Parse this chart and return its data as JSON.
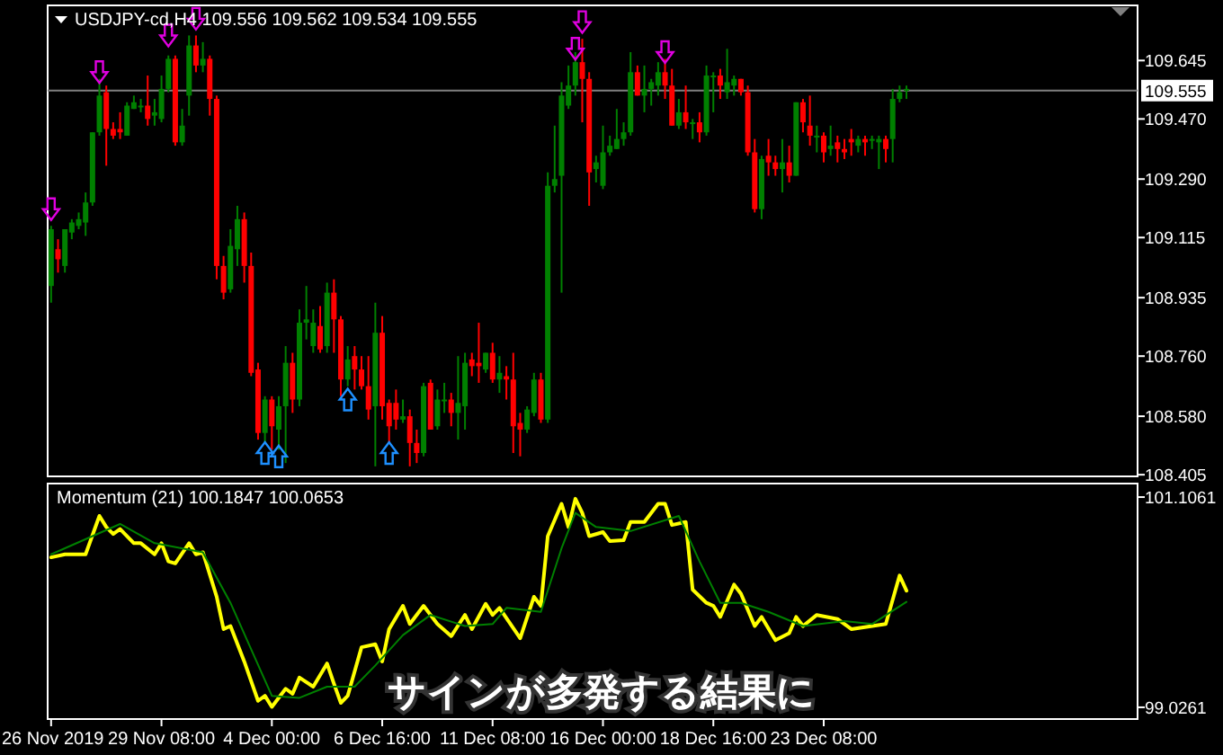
{
  "chart_data": [
    {
      "type": "candlestick",
      "title": "USDJPY-cd,H4 109.556 109.562 109.534 109.555",
      "categories": [
        null,
        null,
        null,
        null,
        null,
        null,
        null,
        null,
        null,
        null,
        null,
        null,
        null,
        null,
        null,
        null,
        null,
        null,
        null,
        null,
        null,
        null,
        null,
        null,
        null,
        null,
        null,
        null,
        null,
        null,
        null,
        null,
        null,
        null,
        null,
        null,
        null,
        null,
        null,
        null,
        null,
        null,
        null,
        null,
        null,
        null,
        null,
        null,
        null,
        null,
        null,
        null,
        null,
        null,
        null,
        null,
        null,
        null,
        null,
        null,
        null,
        null,
        null,
        null,
        null,
        null,
        null,
        null,
        null,
        null,
        null,
        null,
        null,
        null,
        null,
        null,
        null,
        null,
        null,
        null,
        null,
        null,
        null,
        null,
        null,
        null,
        null,
        null,
        null,
        null,
        null,
        null,
        null,
        null,
        null,
        null,
        null,
        null,
        null,
        null,
        null,
        null,
        null,
        null,
        null,
        null,
        null,
        null,
        null,
        null,
        null,
        null,
        null,
        null,
        null,
        null,
        null,
        null,
        null,
        null,
        null,
        null,
        null,
        null,
        null,
        null,
        null,
        null,
        null,
        null,
        null,
        null,
        null,
        null,
        null,
        null,
        null,
        null,
        null,
        null,
        null,
        null,
        null,
        null,
        null,
        null,
        null,
        null,
        null,
        null,
        null,
        null,
        null,
        null,
        null,
        null,
        null,
        null
      ],
      "ohlc": [
        [
          108.97,
          109.15,
          108.92,
          109.14
        ],
        [
          109.08,
          109.11,
          109.01,
          109.05
        ],
        [
          109.03,
          109.14,
          109.01,
          109.14
        ],
        [
          109.13,
          109.17,
          109.11,
          109.16
        ],
        [
          109.15,
          109.19,
          109.14,
          109.17
        ],
        [
          109.16,
          109.25,
          109.12,
          109.22
        ],
        [
          109.22,
          109.43,
          109.21,
          109.43
        ],
        [
          109.43,
          109.59,
          109.42,
          109.54
        ],
        [
          109.55,
          109.57,
          109.33,
          109.44
        ],
        [
          109.44,
          109.46,
          109.41,
          109.42
        ],
        [
          109.44,
          109.49,
          109.41,
          109.43
        ],
        [
          109.42,
          109.52,
          109.42,
          109.51
        ],
        [
          109.5,
          109.54,
          109.5,
          109.52
        ],
        [
          109.51,
          109.53,
          109.49,
          109.51
        ],
        [
          109.51,
          109.6,
          109.45,
          109.47
        ],
        [
          109.48,
          109.53,
          109.45,
          109.49
        ],
        [
          109.47,
          109.6,
          109.46,
          109.56
        ],
        [
          109.56,
          109.66,
          109.55,
          109.65
        ],
        [
          109.65,
          109.66,
          109.39,
          109.4
        ],
        [
          109.4,
          109.5,
          109.39,
          109.45
        ],
        [
          109.54,
          109.72,
          109.48,
          109.69
        ],
        [
          109.69,
          109.72,
          109.61,
          109.63
        ],
        [
          109.63,
          109.7,
          109.61,
          109.65
        ],
        [
          109.65,
          109.66,
          109.48,
          109.53
        ],
        [
          109.53,
          109.54,
          108.99,
          109.03
        ],
        [
          109.03,
          109.06,
          108.93,
          108.95
        ],
        [
          108.96,
          109.14,
          108.95,
          109.09
        ],
        [
          109.08,
          109.21,
          109.03,
          109.17
        ],
        [
          109.17,
          109.19,
          108.98,
          109.03
        ],
        [
          109.03,
          109.07,
          108.7,
          108.71
        ],
        [
          108.72,
          108.74,
          108.51,
          108.53
        ],
        [
          108.53,
          108.64,
          108.5,
          108.63
        ],
        [
          108.63,
          108.64,
          108.48,
          108.55
        ],
        [
          108.54,
          108.64,
          108.48,
          108.61
        ],
        [
          108.61,
          108.79,
          108.44,
          108.74
        ],
        [
          108.74,
          108.77,
          108.59,
          108.63
        ],
        [
          108.63,
          108.9,
          108.61,
          108.86
        ],
        [
          108.86,
          108.97,
          108.81,
          108.87
        ],
        [
          108.79,
          108.9,
          108.77,
          108.86
        ],
        [
          108.85,
          108.91,
          108.77,
          108.78
        ],
        [
          108.79,
          108.98,
          108.77,
          108.95
        ],
        [
          108.95,
          108.99,
          108.77,
          108.87
        ],
        [
          108.87,
          108.88,
          108.64,
          108.69
        ],
        [
          108.69,
          108.79,
          108.67,
          108.75
        ],
        [
          108.76,
          108.79,
          108.66,
          108.72
        ],
        [
          108.72,
          108.76,
          108.66,
          108.67
        ],
        [
          108.67,
          108.76,
          108.57,
          108.6
        ],
        [
          108.61,
          108.92,
          108.43,
          108.83
        ],
        [
          108.83,
          108.88,
          108.57,
          108.61
        ],
        [
          108.62,
          108.63,
          108.5,
          108.55
        ],
        [
          108.62,
          108.66,
          108.54,
          108.57
        ],
        [
          108.57,
          108.63,
          108.56,
          108.58
        ],
        [
          108.58,
          108.6,
          108.43,
          108.5
        ],
        [
          108.5,
          108.54,
          108.44,
          108.47
        ],
        [
          108.47,
          108.68,
          108.46,
          108.67
        ],
        [
          108.68,
          108.69,
          108.54,
          108.54
        ],
        [
          108.55,
          108.66,
          108.54,
          108.63
        ],
        [
          108.63,
          108.68,
          108.59,
          108.63
        ],
        [
          108.63,
          108.65,
          108.55,
          108.59
        ],
        [
          108.59,
          108.76,
          108.51,
          108.62
        ],
        [
          108.61,
          108.77,
          108.54,
          108.74
        ],
        [
          108.75,
          108.77,
          108.7,
          108.73
        ],
        [
          108.74,
          108.86,
          108.68,
          108.73
        ],
        [
          108.72,
          108.77,
          108.71,
          108.77
        ],
        [
          108.77,
          108.8,
          108.68,
          108.69
        ],
        [
          108.69,
          108.76,
          108.65,
          108.71
        ],
        [
          108.7,
          108.73,
          108.63,
          108.69
        ],
        [
          108.69,
          108.77,
          108.47,
          108.55
        ],
        [
          108.56,
          108.59,
          108.46,
          108.54
        ],
        [
          108.54,
          108.61,
          108.53,
          108.6
        ],
        [
          108.59,
          108.71,
          108.58,
          108.69
        ],
        [
          108.69,
          108.71,
          108.56,
          108.57
        ],
        [
          108.57,
          109.31,
          108.56,
          109.27
        ],
        [
          109.27,
          109.45,
          109.25,
          109.29
        ],
        [
          109.3,
          109.58,
          108.95,
          109.54
        ],
        [
          109.51,
          109.63,
          109.5,
          109.57
        ],
        [
          109.57,
          109.67,
          109.54,
          109.64
        ],
        [
          109.64,
          109.71,
          109.46,
          109.59
        ],
        [
          109.59,
          109.61,
          109.21,
          109.31
        ],
        [
          109.32,
          109.36,
          109.28,
          109.34
        ],
        [
          109.27,
          109.45,
          109.26,
          109.37
        ],
        [
          109.37,
          109.42,
          109.36,
          109.39
        ],
        [
          109.38,
          109.5,
          109.38,
          109.41
        ],
        [
          109.41,
          109.46,
          109.39,
          109.43
        ],
        [
          109.43,
          109.67,
          109.42,
          109.61
        ],
        [
          109.61,
          109.63,
          109.54,
          109.54
        ],
        [
          109.54,
          109.63,
          109.49,
          109.56
        ],
        [
          109.56,
          109.59,
          109.51,
          109.58
        ],
        [
          109.57,
          109.64,
          109.54,
          109.61
        ],
        [
          109.61,
          109.65,
          109.53,
          109.57
        ],
        [
          109.57,
          109.62,
          109.45,
          109.45
        ],
        [
          109.45,
          109.53,
          109.44,
          109.49
        ],
        [
          109.49,
          109.57,
          109.44,
          109.46
        ],
        [
          109.46,
          109.47,
          109.41,
          109.46
        ],
        [
          109.46,
          109.49,
          109.4,
          109.43
        ],
        [
          109.43,
          109.63,
          109.42,
          109.6
        ],
        [
          109.6,
          109.61,
          109.49,
          109.6
        ],
        [
          109.6,
          109.62,
          109.53,
          109.57
        ],
        [
          109.55,
          109.68,
          109.53,
          109.58
        ],
        [
          109.57,
          109.6,
          109.54,
          109.59
        ],
        [
          109.59,
          109.59,
          109.54,
          109.55
        ],
        [
          109.55,
          109.57,
          109.36,
          109.37
        ],
        [
          109.37,
          109.41,
          109.19,
          109.2
        ],
        [
          109.2,
          109.36,
          109.17,
          109.35
        ],
        [
          109.36,
          109.41,
          109.3,
          109.34
        ],
        [
          109.34,
          109.36,
          109.3,
          109.32
        ],
        [
          109.32,
          109.41,
          109.25,
          109.34
        ],
        [
          109.34,
          109.39,
          109.28,
          109.3
        ],
        [
          109.3,
          109.52,
          109.3,
          109.52
        ],
        [
          109.52,
          109.53,
          109.43,
          109.46
        ],
        [
          109.45,
          109.54,
          109.39,
          109.42
        ],
        [
          109.42,
          109.45,
          109.37,
          109.42
        ],
        [
          109.42,
          109.43,
          109.34,
          109.37
        ],
        [
          109.38,
          109.45,
          109.36,
          109.39
        ],
        [
          109.4,
          109.42,
          109.34,
          109.38
        ],
        [
          109.38,
          109.41,
          109.35,
          109.37
        ],
        [
          109.41,
          109.44,
          109.36,
          109.4
        ],
        [
          109.39,
          109.42,
          109.37,
          109.41
        ],
        [
          109.41,
          109.42,
          109.36,
          109.4
        ],
        [
          109.41,
          109.42,
          109.38,
          109.41
        ],
        [
          109.4,
          109.42,
          109.32,
          109.41
        ],
        [
          109.41,
          109.42,
          109.34,
          109.38
        ],
        [
          109.41,
          109.56,
          109.34,
          109.53
        ],
        [
          109.53,
          109.57,
          109.52,
          109.55
        ],
        [
          109.56,
          109.57,
          109.53,
          109.56
        ],
        null,
        null,
        null,
        null,
        null,
        null,
        null,
        null,
        null,
        null,
        null,
        null,
        null,
        null,
        null,
        null,
        null,
        null,
        null,
        null,
        null,
        null,
        null,
        null,
        null,
        null,
        null,
        null,
        null,
        null,
        null,
        null,
        null
      ],
      "series": [
        {
          "type": "scatter",
          "color": "#e000e0",
          "values": [
            109.2,
            null,
            null,
            null,
            null,
            null,
            null,
            109.61,
            null,
            null,
            null,
            null,
            null,
            null,
            null,
            null,
            null,
            109.72,
            null,
            null,
            null,
            109.77,
            null,
            null,
            null,
            null,
            null,
            null,
            null,
            null,
            null,
            null,
            null,
            null,
            null,
            null,
            null,
            null,
            null,
            null,
            null,
            null,
            null,
            null,
            null,
            null,
            null,
            null,
            null,
            null,
            null,
            null,
            null,
            null,
            null,
            null,
            null,
            null,
            null,
            null,
            null,
            null,
            null,
            null,
            null,
            null,
            null,
            null,
            null,
            null,
            null,
            null,
            null,
            null,
            null,
            null,
            109.68,
            109.76,
            null,
            null,
            null,
            null,
            null,
            null,
            null,
            null,
            null,
            null,
            null,
            109.67,
            null,
            null,
            null,
            null,
            null,
            null,
            null,
            null,
            null,
            null,
            null,
            null,
            null,
            null,
            null,
            null,
            null,
            null,
            null,
            null,
            null,
            null,
            null,
            null,
            null,
            null,
            null,
            null,
            null,
            null,
            null,
            null,
            null,
            null,
            null,
            null,
            null,
            null,
            null,
            null,
            null,
            null,
            null,
            null,
            null,
            null,
            null,
            null,
            null,
            null,
            null,
            null,
            null,
            null,
            null,
            null,
            null,
            null,
            null,
            null,
            null,
            null,
            null,
            null,
            null,
            null,
            null,
            null
          ]
        },
        {
          "type": "scatter",
          "color": "#1e90ff",
          "values": [
            null,
            null,
            null,
            null,
            null,
            null,
            null,
            null,
            null,
            null,
            null,
            null,
            null,
            null,
            null,
            null,
            null,
            null,
            null,
            null,
            null,
            null,
            null,
            null,
            null,
            null,
            null,
            null,
            null,
            null,
            null,
            108.47,
            null,
            108.46,
            null,
            null,
            null,
            null,
            null,
            null,
            null,
            null,
            null,
            108.63,
            null,
            null,
            null,
            null,
            null,
            108.47,
            null,
            null,
            null,
            null,
            null,
            null,
            null,
            null,
            null,
            null,
            null,
            null,
            null,
            null,
            null,
            null,
            null,
            null,
            null,
            null,
            null,
            null,
            null,
            null,
            null,
            null,
            null,
            null,
            null,
            null,
            null,
            null,
            null,
            null,
            null,
            null,
            null,
            null,
            null,
            null,
            null,
            null,
            null,
            null,
            null,
            null,
            null,
            null,
            null,
            null,
            null,
            null,
            null,
            null,
            null,
            null,
            null,
            null,
            null,
            null,
            null,
            null,
            null,
            null,
            null,
            null,
            null,
            null,
            null,
            null,
            null,
            null,
            null,
            null,
            null,
            null,
            null,
            null,
            null,
            null,
            null,
            null,
            null,
            null,
            null,
            null,
            null,
            null,
            null,
            null,
            null,
            null,
            null,
            null,
            null,
            null,
            null,
            null,
            null,
            null,
            null,
            null,
            null,
            null,
            null,
            null,
            null,
            null
          ]
        }
      ],
      "ylim": [
        108.4,
        109.81
      ],
      "yticks": [
        109.645,
        {
          "value": 109.47,
          "label": "109.470"
        },
        {
          "value": 109.29,
          "label": "109.290"
        },
        109.115,
        108.935,
        {
          "value": 108.76,
          "label": "108.760"
        },
        {
          "value": 108.58,
          "label": "108.580"
        },
        108.405
      ],
      "ref_lines": [
        {
          "axis": "y",
          "value": 109.555,
          "label": "109.555",
          "color": "#808080"
        }
      ]
    },
    {
      "type": "line",
      "title": "Momentum (21) 100.1847 100.0653",
      "categories": [
        "26 Nov 2019",
        null,
        null,
        null,
        null,
        null,
        null,
        null,
        null,
        null,
        null,
        null,
        null,
        null,
        null,
        null,
        "29 Nov 08:00",
        null,
        null,
        null,
        null,
        null,
        null,
        null,
        null,
        null,
        null,
        null,
        null,
        null,
        null,
        null,
        "4 Dec 00:00",
        null,
        null,
        null,
        null,
        null,
        null,
        null,
        null,
        null,
        null,
        null,
        null,
        null,
        null,
        null,
        "6 Dec 16:00",
        null,
        null,
        null,
        null,
        null,
        null,
        null,
        null,
        null,
        null,
        null,
        null,
        null,
        null,
        null,
        "11 Dec 08:00",
        null,
        null,
        null,
        null,
        null,
        null,
        null,
        null,
        null,
        null,
        null,
        null,
        null,
        null,
        null,
        "16 Dec 00:00",
        null,
        null,
        null,
        null,
        null,
        null,
        null,
        null,
        null,
        null,
        null,
        null,
        null,
        null,
        null,
        "18 Dec 16:00",
        null,
        null,
        null,
        null,
        null,
        null,
        null,
        null,
        null,
        null,
        null,
        null,
        null,
        null,
        null,
        "23 Dec 08:00",
        null,
        null,
        null,
        null,
        null,
        null,
        null,
        null,
        null,
        null,
        null,
        null,
        null,
        null,
        null,
        null,
        null,
        null,
        null,
        null,
        null,
        null,
        null,
        null,
        null,
        null,
        null,
        null,
        null,
        null,
        null,
        null,
        null,
        null,
        null,
        null,
        null,
        null,
        null,
        null,
        null,
        null,
        null,
        null,
        null
      ],
      "series": [
        {
          "color": "#ffff00",
          "values": [
            100.51,
            null,
            100.54,
            null,
            null,
            100.54,
            null,
            100.92,
            100.81,
            100.74,
            100.79,
            null,
            100.65,
            100.65,
            null,
            100.54,
            100.65,
            100.47,
            100.45,
            null,
            100.65,
            100.54,
            100.56,
            null,
            100.12,
            99.8,
            99.83,
            null,
            99.48,
            null,
            99.09,
            99.14,
            99.03,
            null,
            99.21,
            99.16,
            99.32,
            null,
            99.23,
            null,
            99.46,
            99.26,
            99.07,
            99.14,
            null,
            99.62,
            null,
            99.65,
            99.48,
            99.8,
            null,
            100.03,
            99.85,
            null,
            100.03,
            null,
            99.85,
            null,
            99.73,
            null,
            99.94,
            99.8,
            null,
            100.05,
            99.94,
            100.01,
            null,
            null,
            99.71,
            null,
            100.12,
            100.03,
            100.72,
            null,
            101.04,
            100.81,
            101.09,
            100.95,
            100.72,
            null,
            100.76,
            100.67,
            null,
            100.68,
            100.86,
            null,
            100.86,
            null,
            101.04,
            101.04,
            100.83,
            null,
            100.86,
            100.19,
            null,
            100.06,
            100.03,
            99.92,
            null,
            100.24,
            100.15,
            null,
            99.83,
            99.92,
            null,
            99.69,
            null,
            99.76,
            99.92,
            99.83,
            null,
            99.94,
            null,
            null,
            99.9,
            null,
            99.8,
            null,
            null,
            null,
            null,
            99.85,
            null,
            100.33,
            100.18,
            null,
            null,
            null,
            null,
            null,
            null,
            null,
            null,
            null,
            null,
            null,
            null,
            null,
            null,
            null,
            null,
            null,
            null,
            null,
            null,
            null,
            null,
            null,
            null,
            null,
            null,
            null,
            null,
            null,
            null,
            null,
            null,
            null
          ]
        },
        {
          "color": "#008000",
          "values": [
            100.54,
            null,
            null,
            null,
            null,
            null,
            null,
            null,
            null,
            null,
            100.84,
            null,
            null,
            null,
            null,
            100.65,
            null,
            null,
            null,
            null,
            null,
            null,
            100.56,
            null,
            null,
            null,
            100.06,
            null,
            null,
            null,
            null,
            null,
            99.14,
            null,
            null,
            null,
            99.12,
            null,
            null,
            null,
            99.23,
            null,
            null,
            null,
            99.23,
            null,
            null,
            99.44,
            null,
            null,
            null,
            99.74,
            null,
            null,
            null,
            99.94,
            null,
            null,
            null,
            null,
            99.83,
            null,
            null,
            null,
            99.85,
            null,
            100.01,
            null,
            null,
            null,
            null,
            99.97,
            null,
            null,
            100.6,
            null,
            100.95,
            null,
            null,
            100.81,
            null,
            null,
            null,
            null,
            100.77,
            null,
            null,
            null,
            null,
            null,
            null,
            100.92,
            null,
            null,
            100.47,
            null,
            null,
            100.06,
            null,
            null,
            100.06,
            null,
            null,
            null,
            99.97,
            null,
            null,
            null,
            null,
            99.83,
            null,
            null,
            null,
            null,
            null,
            99.88,
            null,
            null,
            null,
            99.85,
            null,
            null,
            null,
            null,
            100.07,
            null,
            null,
            null,
            null,
            null,
            null,
            null,
            null,
            null,
            null,
            null,
            null,
            null,
            null,
            null,
            null,
            null,
            null,
            null,
            null,
            null,
            null,
            null,
            null,
            null,
            null,
            null,
            null,
            null,
            null,
            null,
            null,
            null
          ]
        }
      ],
      "ylim": [
        98.91,
        101.24
      ],
      "yticks": [
        101.1061,
        99.0261
      ],
      "annotations": [
        "サインが多発する結果に"
      ]
    }
  ]
}
